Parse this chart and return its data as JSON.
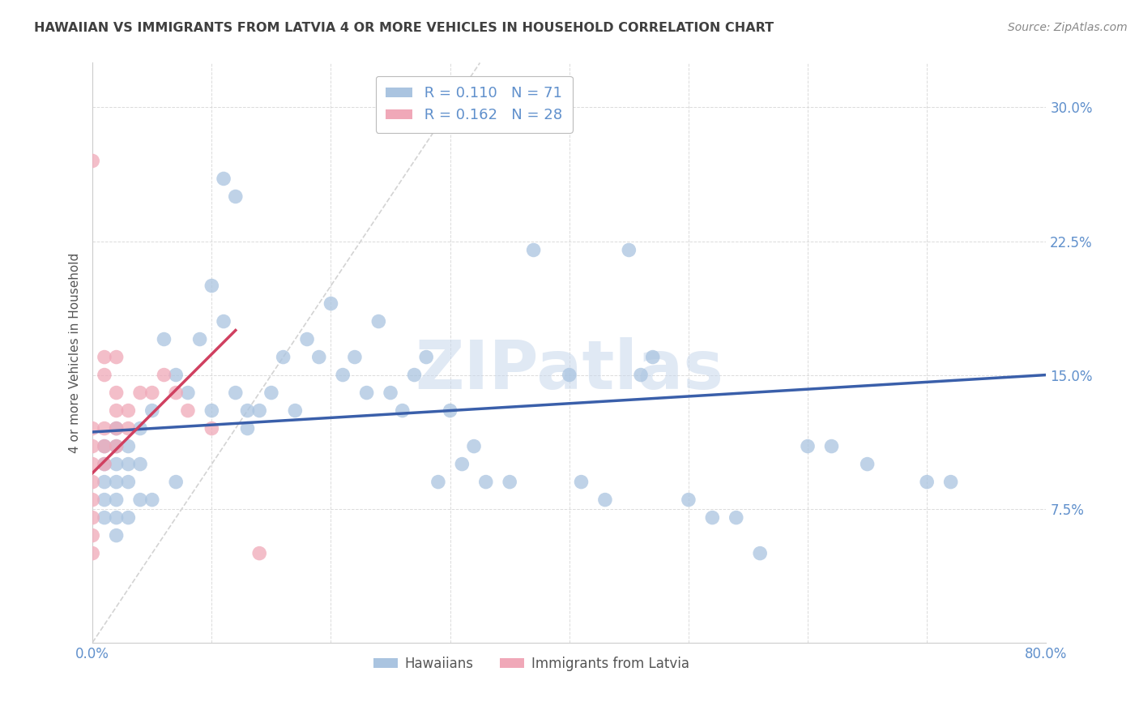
{
  "title": "HAWAIIAN VS IMMIGRANTS FROM LATVIA 4 OR MORE VEHICLES IN HOUSEHOLD CORRELATION CHART",
  "source": "Source: ZipAtlas.com",
  "ylabel": "4 or more Vehicles in Household",
  "xlim": [
    0.0,
    0.8
  ],
  "ylim": [
    0.0,
    0.325
  ],
  "xticks": [
    0.0,
    0.1,
    0.2,
    0.3,
    0.4,
    0.5,
    0.6,
    0.7,
    0.8
  ],
  "yticks": [
    0.0,
    0.075,
    0.15,
    0.225,
    0.3
  ],
  "yticklabels": [
    "",
    "7.5%",
    "15.0%",
    "22.5%",
    "30.0%"
  ],
  "legend_r1": "R = 0.110",
  "legend_n1": "N = 71",
  "legend_r2": "R = 0.162",
  "legend_n2": "N = 28",
  "color_hawaiian": "#aac4e0",
  "color_latvia": "#f0a8b8",
  "color_line_hawaiian": "#3a5faa",
  "color_line_latvia": "#d04060",
  "color_diagonal": "#c8c8c8",
  "color_grid": "#d8d8d8",
  "color_tick_labels": "#6090cc",
  "color_title": "#404040",
  "watermark": "ZIPatlas",
  "hawaiians_x": [
    0.01,
    0.01,
    0.01,
    0.01,
    0.01,
    0.02,
    0.02,
    0.02,
    0.02,
    0.02,
    0.02,
    0.02,
    0.03,
    0.03,
    0.03,
    0.03,
    0.04,
    0.04,
    0.04,
    0.05,
    0.05,
    0.06,
    0.07,
    0.07,
    0.08,
    0.09,
    0.1,
    0.1,
    0.11,
    0.11,
    0.12,
    0.12,
    0.13,
    0.13,
    0.14,
    0.15,
    0.16,
    0.17,
    0.18,
    0.19,
    0.2,
    0.21,
    0.22,
    0.23,
    0.24,
    0.25,
    0.26,
    0.27,
    0.28,
    0.29,
    0.3,
    0.31,
    0.32,
    0.33,
    0.35,
    0.37,
    0.4,
    0.41,
    0.43,
    0.45,
    0.46,
    0.47,
    0.5,
    0.52,
    0.54,
    0.56,
    0.6,
    0.62,
    0.65,
    0.7,
    0.72
  ],
  "hawaiians_y": [
    0.11,
    0.1,
    0.09,
    0.08,
    0.07,
    0.12,
    0.11,
    0.1,
    0.09,
    0.08,
    0.07,
    0.06,
    0.11,
    0.1,
    0.09,
    0.07,
    0.12,
    0.1,
    0.08,
    0.13,
    0.08,
    0.17,
    0.15,
    0.09,
    0.14,
    0.17,
    0.2,
    0.13,
    0.26,
    0.18,
    0.25,
    0.14,
    0.13,
    0.12,
    0.13,
    0.14,
    0.16,
    0.13,
    0.17,
    0.16,
    0.19,
    0.15,
    0.16,
    0.14,
    0.18,
    0.14,
    0.13,
    0.15,
    0.16,
    0.09,
    0.13,
    0.1,
    0.11,
    0.09,
    0.09,
    0.22,
    0.15,
    0.09,
    0.08,
    0.22,
    0.15,
    0.16,
    0.08,
    0.07,
    0.07,
    0.05,
    0.11,
    0.11,
    0.1,
    0.09,
    0.09
  ],
  "latvia_x": [
    0.0,
    0.0,
    0.0,
    0.0,
    0.0,
    0.0,
    0.0,
    0.0,
    0.0,
    0.01,
    0.01,
    0.01,
    0.01,
    0.01,
    0.02,
    0.02,
    0.02,
    0.02,
    0.02,
    0.03,
    0.03,
    0.04,
    0.05,
    0.06,
    0.07,
    0.08,
    0.1,
    0.14
  ],
  "latvia_y": [
    0.05,
    0.06,
    0.07,
    0.08,
    0.09,
    0.1,
    0.11,
    0.12,
    0.27,
    0.1,
    0.11,
    0.12,
    0.15,
    0.16,
    0.11,
    0.12,
    0.13,
    0.14,
    0.16,
    0.12,
    0.13,
    0.14,
    0.14,
    0.15,
    0.14,
    0.13,
    0.12,
    0.05
  ]
}
